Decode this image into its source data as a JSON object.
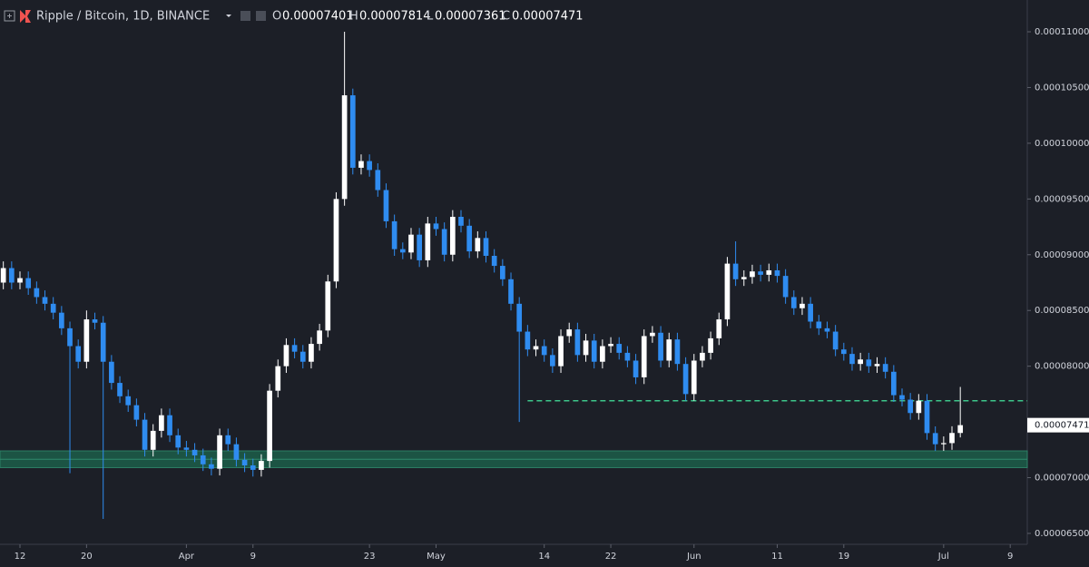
{
  "chart_data": {
    "type": "candlestick",
    "title": "Ripple / Bitcoin, 1D, BINANCE",
    "ohlc_labels": [
      "O",
      "H",
      "L",
      "C"
    ],
    "up_color": "#ffffff",
    "down_color": "#2f8cf0",
    "x": [
      -2,
      -1,
      0,
      1,
      2,
      3,
      4,
      5,
      6,
      7,
      8,
      9,
      10,
      11,
      12,
      13,
      14,
      15,
      16,
      17,
      18,
      19,
      20,
      21,
      22,
      23,
      24,
      25,
      26,
      27,
      28,
      29,
      30,
      31,
      32,
      33,
      34,
      35,
      36,
      37,
      38,
      39,
      40,
      41,
      42,
      43,
      44,
      45,
      46,
      47,
      48,
      49,
      50,
      51,
      52,
      53,
      54,
      55,
      56,
      57,
      58,
      59,
      60,
      61,
      62,
      63,
      64,
      65,
      66,
      67,
      68,
      69,
      70,
      71,
      72,
      73,
      74,
      75,
      76,
      77,
      78,
      79,
      80,
      81,
      82,
      83,
      84,
      85,
      86,
      87,
      88,
      89,
      90,
      91,
      92,
      93,
      94,
      95,
      96,
      97,
      98,
      99,
      100,
      101,
      102,
      103,
      104,
      105,
      106,
      107,
      108,
      109,
      110,
      111,
      112,
      113
    ],
    "open": [
      8.75e-05,
      8.88e-05,
      8.75e-05,
      8.79e-05,
      8.7e-05,
      8.62e-05,
      8.56e-05,
      8.48e-05,
      8.34e-05,
      8.18e-05,
      8.04e-05,
      8.42e-05,
      8.39e-05,
      8.04e-05,
      7.85e-05,
      7.73e-05,
      7.65e-05,
      7.52e-05,
      7.25e-05,
      7.42e-05,
      7.56e-05,
      7.38e-05,
      7.27e-05,
      7.25e-05,
      7.2e-05,
      7.12e-05,
      7.08e-05,
      7.38e-05,
      7.3e-05,
      7.16e-05,
      7.11e-05,
      7.07e-05,
      7.15e-05,
      7.78e-05,
      8e-05,
      8.19e-05,
      8.13e-05,
      8.04e-05,
      8.2e-05,
      8.32e-05,
      8.76e-05,
      9.5e-05,
      0.0001043,
      9.78e-05,
      9.84e-05,
      9.76e-05,
      9.58e-05,
      9.3e-05,
      9.05e-05,
      9.02e-05,
      9.18e-05,
      8.95e-05,
      9.28e-05,
      9.23e-05,
      9e-05,
      9.34e-05,
      9.26e-05,
      9.03e-05,
      9.15e-05,
      8.99e-05,
      8.9e-05,
      8.78e-05,
      8.56e-05,
      8.31e-05,
      8.15e-05,
      8.18e-05,
      8.1e-05,
      8e-05,
      8.27e-05,
      8.33e-05,
      8.1e-05,
      8.23e-05,
      8.04e-05,
      8.18e-05,
      8.2e-05,
      8.12e-05,
      8.05e-05,
      7.9e-05,
      8.27e-05,
      8.3e-05,
      8.05e-05,
      8.24e-05,
      8.02e-05,
      7.75e-05,
      8.05e-05,
      8.12e-05,
      8.25e-05,
      8.42e-05,
      8.92e-05,
      8.78e-05,
      8.8e-05,
      8.85e-05,
      8.82e-05,
      8.86e-05,
      8.81e-05,
      8.62e-05,
      8.52e-05,
      8.56e-05,
      8.4e-05,
      8.34e-05,
      8.31e-05,
      8.15e-05,
      8.11e-05,
      8.02e-05,
      8.06e-05,
      8e-05,
      8.02e-05,
      7.95e-05,
      7.74e-05,
      7.7e-05,
      7.58e-05,
      7.69e-05,
      7.4e-05,
      7.3e-05,
      7.31e-05,
      7.401e-05
    ],
    "high": [
      8.94e-05,
      8.94e-05,
      8.85e-05,
      8.85e-05,
      8.76e-05,
      8.68e-05,
      8.62e-05,
      8.54e-05,
      8.4e-05,
      8.24e-05,
      8.5e-05,
      8.48e-05,
      8.45e-05,
      8.1e-05,
      7.91e-05,
      7.79e-05,
      7.71e-05,
      7.58e-05,
      7.48e-05,
      7.62e-05,
      7.62e-05,
      7.44e-05,
      7.33e-05,
      7.31e-05,
      7.26e-05,
      7.18e-05,
      7.44e-05,
      7.44e-05,
      7.36e-05,
      7.22e-05,
      7.17e-05,
      7.21e-05,
      7.84e-05,
      8.06e-05,
      8.25e-05,
      8.25e-05,
      8.19e-05,
      8.26e-05,
      8.38e-05,
      8.82e-05,
      9.56e-05,
      0.00011,
      0.0001049,
      9.9e-05,
      9.9e-05,
      9.82e-05,
      9.64e-05,
      9.36e-05,
      9.11e-05,
      9.24e-05,
      9.24e-05,
      9.34e-05,
      9.34e-05,
      9.29e-05,
      9.4e-05,
      9.4e-05,
      9.32e-05,
      9.21e-05,
      9.21e-05,
      9.05e-05,
      8.96e-05,
      8.84e-05,
      8.62e-05,
      8.37e-05,
      8.24e-05,
      8.24e-05,
      8.16e-05,
      8.33e-05,
      8.39e-05,
      8.39e-05,
      8.29e-05,
      8.29e-05,
      8.24e-05,
      8.26e-05,
      8.26e-05,
      8.18e-05,
      8.11e-05,
      8.33e-05,
      8.36e-05,
      8.36e-05,
      8.3e-05,
      8.3e-05,
      8.08e-05,
      8.11e-05,
      8.18e-05,
      8.31e-05,
      8.48e-05,
      8.98e-05,
      9.12e-05,
      8.86e-05,
      8.91e-05,
      8.91e-05,
      8.92e-05,
      8.92e-05,
      8.87e-05,
      8.68e-05,
      8.62e-05,
      8.62e-05,
      8.46e-05,
      8.4e-05,
      8.37e-05,
      8.21e-05,
      8.17e-05,
      8.12e-05,
      8.12e-05,
      8.08e-05,
      8.08e-05,
      8.01e-05,
      7.8e-05,
      7.76e-05,
      7.75e-05,
      7.75e-05,
      7.46e-05,
      7.37e-05,
      7.461e-05,
      7.814e-05
    ],
    "low": [
      8.69e-05,
      8.69e-05,
      8.69e-05,
      8.64e-05,
      8.56e-05,
      8.5e-05,
      8.42e-05,
      8.28e-05,
      7.04e-05,
      7.98e-05,
      7.98e-05,
      8.33e-05,
      6.63e-05,
      7.79e-05,
      7.67e-05,
      7.59e-05,
      7.46e-05,
      7.19e-05,
      7.19e-05,
      7.36e-05,
      7.32e-05,
      7.21e-05,
      7.19e-05,
      7.14e-05,
      7.06e-05,
      7.02e-05,
      7.02e-05,
      7.24e-05,
      7.1e-05,
      7.05e-05,
      7.01e-05,
      7.01e-05,
      7.09e-05,
      7.72e-05,
      7.94e-05,
      8.07e-05,
      7.98e-05,
      7.98e-05,
      8.14e-05,
      8.26e-05,
      8.7e-05,
      9.44e-05,
      9.72e-05,
      9.72e-05,
      9.7e-05,
      9.52e-05,
      9.24e-05,
      8.99e-05,
      8.96e-05,
      8.96e-05,
      8.89e-05,
      8.89e-05,
      9.17e-05,
      8.94e-05,
      8.94e-05,
      9.2e-05,
      8.97e-05,
      8.97e-05,
      8.93e-05,
      8.84e-05,
      8.72e-05,
      8.5e-05,
      7.5e-05,
      8.09e-05,
      8.09e-05,
      8.04e-05,
      7.94e-05,
      7.94e-05,
      8.21e-05,
      8.04e-05,
      8.04e-05,
      7.98e-05,
      7.98e-05,
      8.12e-05,
      8.06e-05,
      7.99e-05,
      7.84e-05,
      7.84e-05,
      8.21e-05,
      7.99e-05,
      7.99e-05,
      7.96e-05,
      7.69e-05,
      7.69e-05,
      7.99e-05,
      8.06e-05,
      8.19e-05,
      8.36e-05,
      8.72e-05,
      8.72e-05,
      8.74e-05,
      8.76e-05,
      8.76e-05,
      8.75e-05,
      8.56e-05,
      8.46e-05,
      8.46e-05,
      8.34e-05,
      8.28e-05,
      8.25e-05,
      8.09e-05,
      8.05e-05,
      7.96e-05,
      7.96e-05,
      7.94e-05,
      7.94e-05,
      7.89e-05,
      7.68e-05,
      7.64e-05,
      7.52e-05,
      7.52e-05,
      7.34e-05,
      7.24e-05,
      7.24e-05,
      7.25e-05,
      7.361e-05
    ],
    "close": [
      8.88e-05,
      8.75e-05,
      8.79e-05,
      8.7e-05,
      8.62e-05,
      8.56e-05,
      8.48e-05,
      8.34e-05,
      8.18e-05,
      8.04e-05,
      8.42e-05,
      8.39e-05,
      8.04e-05,
      7.85e-05,
      7.73e-05,
      7.65e-05,
      7.52e-05,
      7.25e-05,
      7.42e-05,
      7.56e-05,
      7.38e-05,
      7.27e-05,
      7.25e-05,
      7.2e-05,
      7.12e-05,
      7.08e-05,
      7.38e-05,
      7.3e-05,
      7.16e-05,
      7.11e-05,
      7.07e-05,
      7.15e-05,
      7.78e-05,
      8e-05,
      8.19e-05,
      8.13e-05,
      8.04e-05,
      8.2e-05,
      8.32e-05,
      8.76e-05,
      9.5e-05,
      0.0001043,
      9.78e-05,
      9.84e-05,
      9.76e-05,
      9.58e-05,
      9.3e-05,
      9.05e-05,
      9.02e-05,
      9.18e-05,
      8.95e-05,
      9.28e-05,
      9.23e-05,
      9e-05,
      9.34e-05,
      9.26e-05,
      9.03e-05,
      9.15e-05,
      8.99e-05,
      8.9e-05,
      8.78e-05,
      8.56e-05,
      8.31e-05,
      8.15e-05,
      8.18e-05,
      8.1e-05,
      8e-05,
      8.27e-05,
      8.33e-05,
      8.1e-05,
      8.23e-05,
      8.04e-05,
      8.18e-05,
      8.2e-05,
      8.12e-05,
      8.05e-05,
      7.9e-05,
      8.27e-05,
      8.3e-05,
      8.05e-05,
      8.24e-05,
      8.02e-05,
      7.75e-05,
      8.05e-05,
      8.12e-05,
      8.25e-05,
      8.42e-05,
      8.92e-05,
      8.78e-05,
      8.8e-05,
      8.85e-05,
      8.82e-05,
      8.86e-05,
      8.81e-05,
      8.62e-05,
      8.52e-05,
      8.56e-05,
      8.4e-05,
      8.34e-05,
      8.31e-05,
      8.15e-05,
      8.11e-05,
      8.02e-05,
      8.06e-05,
      8e-05,
      8.02e-05,
      7.95e-05,
      7.74e-05,
      7.7e-05,
      7.58e-05,
      7.69e-05,
      7.4e-05,
      7.3e-05,
      7.31e-05,
      7.401e-05,
      7.471e-05
    ],
    "xlim": [
      -2.4,
      121.05
    ],
    "xticks": [
      {
        "value": 0,
        "label": "12"
      },
      {
        "value": 8,
        "label": "20"
      },
      {
        "value": 20,
        "label": "Apr"
      },
      {
        "value": 28,
        "label": "9"
      },
      {
        "value": 42,
        "label": "23"
      },
      {
        "value": 50,
        "label": "May"
      },
      {
        "value": 63,
        "label": "14"
      },
      {
        "value": 71,
        "label": "22"
      },
      {
        "value": 81,
        "label": "Jun"
      },
      {
        "value": 91,
        "label": "11"
      },
      {
        "value": 99,
        "label": "19"
      },
      {
        "value": 111,
        "label": "Jul"
      },
      {
        "value": 119,
        "label": "9"
      }
    ],
    "ylim": [
      6.402e-05,
      0.00011285
    ],
    "yticks": [
      {
        "value": 6.5e-05,
        "label": "0.00006500"
      },
      {
        "value": 7e-05,
        "label": "0.00007000"
      },
      {
        "value": 7.5e-05,
        "label": "0.00007500"
      },
      {
        "value": 8e-05,
        "label": "0.00008000"
      },
      {
        "value": 8.5e-05,
        "label": "0.00008500"
      },
      {
        "value": 9e-05,
        "label": "0.00009000"
      },
      {
        "value": 9.5e-05,
        "label": "0.00009500"
      },
      {
        "value": 0.0001,
        "label": "0.00010000"
      },
      {
        "value": 0.000105,
        "label": "0.00010500"
      },
      {
        "value": 0.00011,
        "label": "0.00011000"
      }
    ],
    "support_zone": [
      7.09e-05,
      7.24e-05
    ],
    "support_color": "#1d5a48",
    "resistance": {
      "value": 7.69e-05,
      "start": 61,
      "color": "#3cc68a"
    }
  }
}
